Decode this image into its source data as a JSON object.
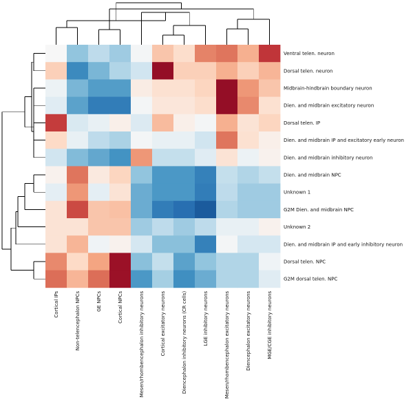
{
  "chart_data": {
    "type": "heatmap",
    "title": "",
    "colormap": "RdBu_r",
    "value_range": [
      0,
      1
    ],
    "legend": "none",
    "columns": [
      "Cortical IPs",
      "Non-telencephalon NPCs",
      "GE NPCs",
      "Cortical NPCs",
      "Mesen/rhombencephalon inhibitory neurons",
      "Cortical excitatory neurons",
      "Diencephalon inhibitory neurons (CR cells)",
      "LGE inhibitory neurons",
      "Mesen/rhombencephalon excitatory neurons",
      "Diencephalon excitatory neurons",
      "MGE/CGE inhibitory neurons"
    ],
    "rows": [
      "Ventral telen. neuron",
      "Dorsal telen. neuron",
      "Midbrain-hindbrain boundary neuron",
      "Dien. and midbrain excitatory neuron",
      "Dorsal telen. IP",
      "Dien. and midbrain IP and excitatory early neuron",
      "Dien. and midbrain inhibitory neuron",
      "Dien. and midbrain NPC",
      "Unknown 1",
      "G2M Dien. and midbrain NPC",
      "Unknown 2",
      "Dien. and midbrain IP and early inhibitory neuron",
      "Dorsal telen. NPC",
      "G2M dorsal telen. NPC"
    ],
    "values": [
      [
        0.5,
        0.3,
        0.37,
        0.32,
        0.49,
        0.64,
        0.59,
        0.75,
        0.77,
        0.68,
        0.86
      ],
      [
        0.62,
        0.18,
        0.27,
        0.35,
        0.4,
        0.94,
        0.62,
        0.62,
        0.68,
        0.62,
        0.67
      ],
      [
        0.47,
        0.27,
        0.22,
        0.22,
        0.54,
        0.58,
        0.58,
        0.61,
        0.94,
        0.72,
        0.64
      ],
      [
        0.44,
        0.23,
        0.15,
        0.15,
        0.49,
        0.56,
        0.56,
        0.59,
        0.94,
        0.74,
        0.58
      ],
      [
        0.85,
        0.42,
        0.46,
        0.53,
        0.43,
        0.66,
        0.53,
        0.49,
        0.68,
        0.57,
        0.61
      ],
      [
        0.6,
        0.46,
        0.37,
        0.34,
        0.49,
        0.46,
        0.46,
        0.4,
        0.77,
        0.58,
        0.53
      ],
      [
        0.4,
        0.28,
        0.24,
        0.2,
        0.72,
        0.38,
        0.38,
        0.44,
        0.57,
        0.47,
        0.52
      ],
      [
        0.52,
        0.77,
        0.55,
        0.61,
        0.3,
        0.21,
        0.21,
        0.16,
        0.38,
        0.35,
        0.38
      ],
      [
        0.45,
        0.72,
        0.45,
        0.57,
        0.25,
        0.21,
        0.21,
        0.15,
        0.37,
        0.32,
        0.32
      ],
      [
        0.57,
        0.83,
        0.64,
        0.65,
        0.25,
        0.15,
        0.12,
        0.08,
        0.35,
        0.32,
        0.32
      ],
      [
        0.57,
        0.57,
        0.64,
        0.64,
        0.32,
        0.37,
        0.32,
        0.37,
        0.46,
        0.46,
        0.52
      ],
      [
        0.57,
        0.67,
        0.48,
        0.52,
        0.41,
        0.29,
        0.29,
        0.16,
        0.49,
        0.41,
        0.41
      ],
      [
        0.74,
        0.6,
        0.7,
        0.93,
        0.29,
        0.38,
        0.23,
        0.3,
        0.35,
        0.35,
        0.48
      ],
      [
        0.78,
        0.67,
        0.78,
        0.93,
        0.21,
        0.33,
        0.19,
        0.25,
        0.35,
        0.35,
        0.44
      ]
    ],
    "row_dendrogram": [
      [
        0,
        1
      ],
      [
        2,
        3
      ],
      [
        4,
        5
      ],
      [
        6,
        15
      ],
      [
        16,
        14
      ],
      [
        17,
        18
      ],
      [
        7,
        8
      ],
      [
        20,
        9
      ],
      [
        21,
        10
      ],
      [
        22,
        11
      ],
      [
        12,
        13
      ],
      [
        23,
        24
      ],
      [
        19,
        25
      ]
    ],
    "col_dendrogram": [
      [
        5,
        6
      ],
      [
        8,
        9
      ],
      [
        11,
        7
      ],
      [
        12,
        10
      ],
      [
        13,
        4
      ],
      [
        0,
        1
      ],
      [
        2,
        3
      ],
      [
        15,
        16
      ],
      [
        14,
        17
      ],
      [
        18,
        19
      ]
    ]
  }
}
